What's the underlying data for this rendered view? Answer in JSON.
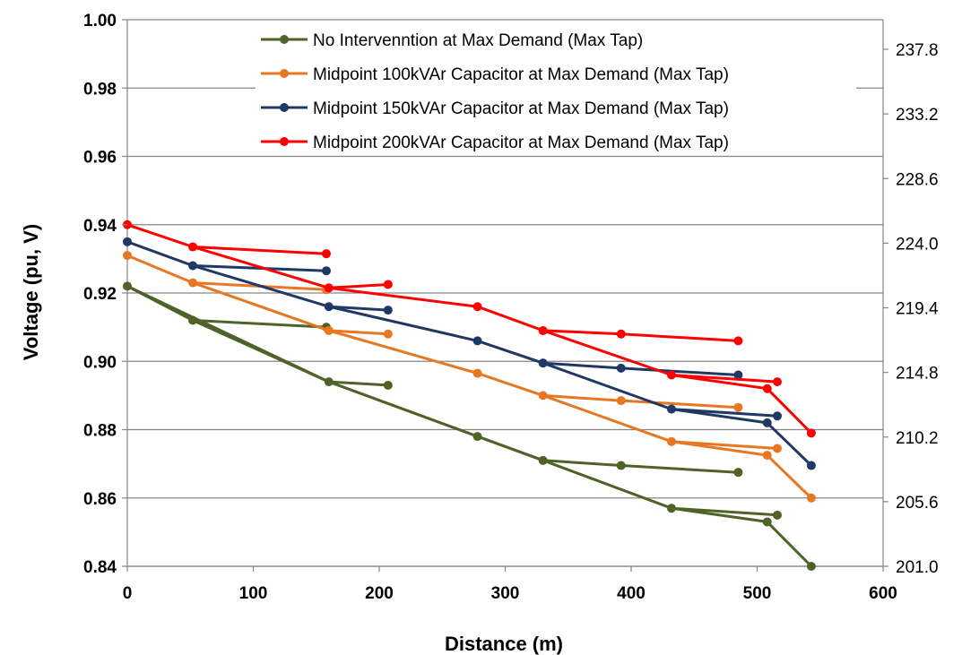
{
  "chart_data": {
    "type": "line",
    "xlabel": "Distance (m)",
    "ylabel": "Voltage (pu, V)",
    "xlim": [
      0,
      600
    ],
    "ylim": [
      0.84,
      1.0
    ],
    "x_ticks": [
      "0",
      "100",
      "200",
      "300",
      "400",
      "500",
      "600"
    ],
    "y_ticks": [
      "0.84",
      "0.86",
      "0.88",
      "0.90",
      "0.92",
      "0.94",
      "0.96",
      "0.98",
      "1.00"
    ],
    "y2_ticks": [
      "201.0",
      "205.6",
      "210.2",
      "214.8",
      "219.4",
      "224.0",
      "228.6",
      "233.2",
      "237.8"
    ],
    "grid": "horizontal",
    "legend_position": "top-center",
    "series": [
      {
        "name": "No Intervenntion at Max Demand (Max Tap)",
        "color": "#4f6228",
        "segments": [
          [
            [
              0,
              0.922
            ],
            [
              52,
              0.912
            ],
            [
              160,
              0.894
            ],
            [
              330,
              0.871
            ],
            [
              432,
              0.857
            ],
            [
              508,
              0.853
            ],
            [
              543,
              0.84
            ]
          ],
          [
            [
              52,
              0.912
            ],
            [
              158,
              0.91
            ]
          ],
          [
            [
              160,
              0.894
            ],
            [
              207,
              0.893
            ]
          ],
          [
            [
              0,
              0.922
            ],
            [
              160,
              0.894
            ],
            [
              278,
              0.878
            ],
            [
              330,
              0.871
            ]
          ],
          [
            [
              330,
              0.871
            ],
            [
              392,
              0.8695
            ],
            [
              485,
              0.8675
            ]
          ],
          [
            [
              432,
              0.857
            ],
            [
              516,
              0.855
            ]
          ]
        ]
      },
      {
        "name": "Midpoint 100kVAr Capacitor at Max Demand (Max Tap)",
        "color": "#e87722",
        "segments": [
          [
            [
              0,
              0.931
            ],
            [
              52,
              0.923
            ],
            [
              160,
              0.909
            ],
            [
              278,
              0.8965
            ],
            [
              330,
              0.89
            ],
            [
              432,
              0.8765
            ],
            [
              508,
              0.8725
            ],
            [
              543,
              0.86
            ]
          ],
          [
            [
              52,
              0.923
            ],
            [
              158,
              0.921
            ]
          ],
          [
            [
              160,
              0.909
            ],
            [
              207,
              0.908
            ]
          ],
          [
            [
              330,
              0.89
            ],
            [
              392,
              0.8885
            ],
            [
              485,
              0.8865
            ]
          ],
          [
            [
              432,
              0.8765
            ],
            [
              516,
              0.8745
            ]
          ]
        ]
      },
      {
        "name": "Midpoint 150kVAr Capacitor at Max Demand (Max Tap)",
        "color": "#1f3864",
        "segments": [
          [
            [
              0,
              0.935
            ],
            [
              52,
              0.928
            ],
            [
              160,
              0.916
            ],
            [
              278,
              0.906
            ],
            [
              330,
              0.8995
            ],
            [
              432,
              0.886
            ],
            [
              508,
              0.882
            ],
            [
              543,
              0.8695
            ]
          ],
          [
            [
              52,
              0.928
            ],
            [
              158,
              0.9265
            ]
          ],
          [
            [
              160,
              0.916
            ],
            [
              207,
              0.915
            ]
          ],
          [
            [
              330,
              0.8995
            ],
            [
              392,
              0.898
            ],
            [
              485,
              0.896
            ]
          ],
          [
            [
              432,
              0.886
            ],
            [
              516,
              0.884
            ]
          ]
        ]
      },
      {
        "name": "Midpoint 200kVAr Capacitor at Max Demand (Max Tap)",
        "color": "#ff0000",
        "segments": [
          [
            [
              0,
              0.94
            ],
            [
              52,
              0.9335
            ],
            [
              160,
              0.9215
            ],
            [
              278,
              0.916
            ],
            [
              330,
              0.909
            ],
            [
              432,
              0.896
            ],
            [
              508,
              0.892
            ],
            [
              543,
              0.879
            ]
          ],
          [
            [
              52,
              0.9335
            ],
            [
              158,
              0.9315
            ]
          ],
          [
            [
              160,
              0.9215
            ],
            [
              207,
              0.9225
            ]
          ],
          [
            [
              330,
              0.909
            ],
            [
              392,
              0.908
            ],
            [
              485,
              0.906
            ]
          ],
          [
            [
              432,
              0.896
            ],
            [
              516,
              0.894
            ]
          ]
        ]
      }
    ]
  }
}
